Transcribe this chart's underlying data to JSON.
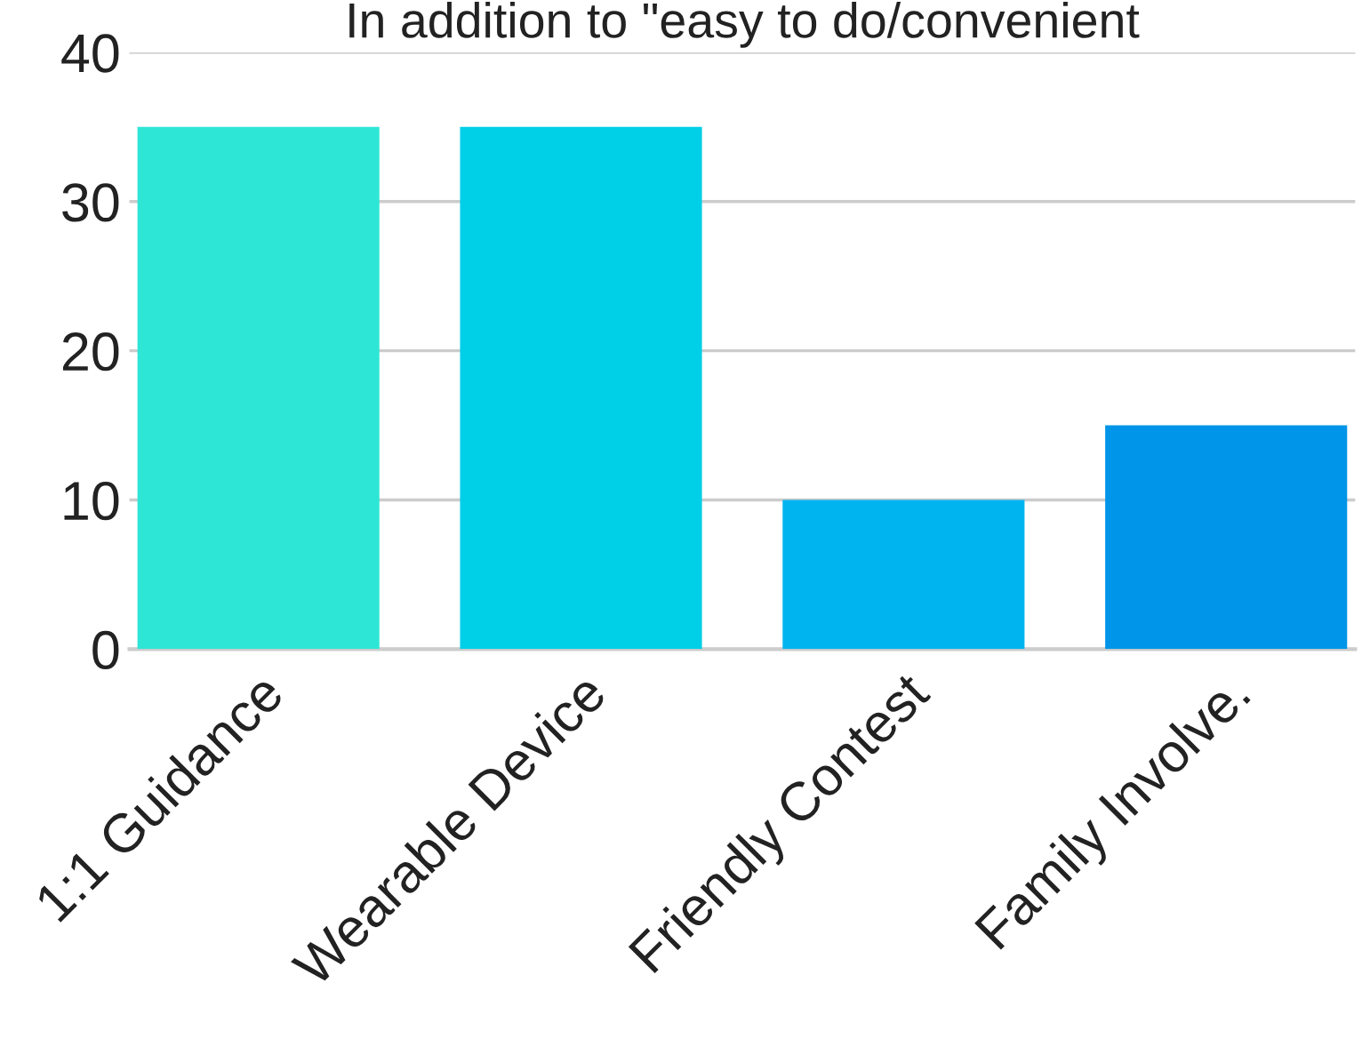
{
  "chart_data": {
    "type": "bar",
    "title": "In addition to \"easy to do/convenient",
    "categories": [
      "1:1 Guidance",
      "Wearable Device",
      "Friendly Contest",
      "Family Involve."
    ],
    "values": [
      35,
      35,
      10,
      15
    ],
    "colors": [
      "#2ee6d6",
      "#00cfe8",
      "#00b4f0",
      "#0095e8"
    ],
    "ylim": [
      0,
      40
    ],
    "yticks": [
      0,
      10,
      20,
      30,
      40
    ],
    "grid": "y"
  }
}
